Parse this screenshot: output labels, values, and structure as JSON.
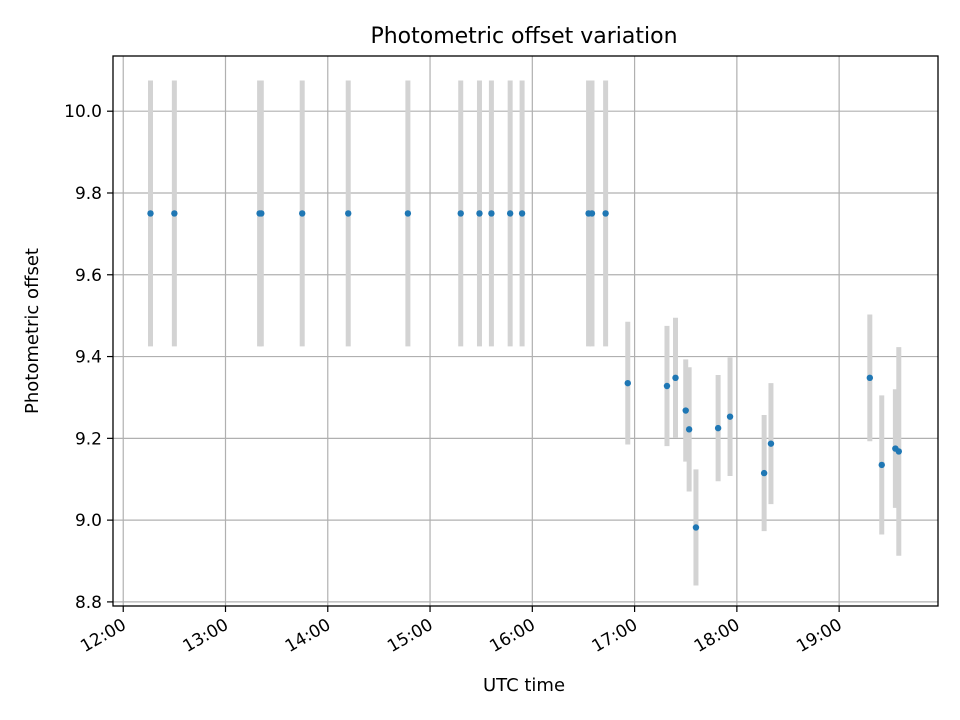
{
  "chart_data": {
    "type": "scatter",
    "title": "Photometric offset variation",
    "xlabel": "UTC time",
    "ylabel": "Photometric offset",
    "xlim": [
      "11:54",
      "19:58"
    ],
    "ylim": [
      8.79,
      10.135
    ],
    "x_ticks": [
      "12:00",
      "13:00",
      "14:00",
      "15:00",
      "16:00",
      "17:00",
      "18:00",
      "19:00"
    ],
    "y_ticks": [
      8.8,
      9.0,
      9.2,
      9.4,
      9.6,
      9.8,
      10.0
    ],
    "grid": true,
    "point_color": "#1f77b4",
    "errorbar_color": "#d3d3d3",
    "points": [
      {
        "time": "12:16",
        "y": 9.75,
        "err": 0.325
      },
      {
        "time": "12:30",
        "y": 9.75,
        "err": 0.325
      },
      {
        "time": "13:20",
        "y": 9.75,
        "err": 0.325
      },
      {
        "time": "13:21",
        "y": 9.75,
        "err": 0.325
      },
      {
        "time": "13:45",
        "y": 9.75,
        "err": 0.325
      },
      {
        "time": "14:12",
        "y": 9.75,
        "err": 0.325
      },
      {
        "time": "14:47",
        "y": 9.75,
        "err": 0.325
      },
      {
        "time": "15:18",
        "y": 9.75,
        "err": 0.325
      },
      {
        "time": "15:29",
        "y": 9.75,
        "err": 0.325
      },
      {
        "time": "15:36",
        "y": 9.75,
        "err": 0.325
      },
      {
        "time": "15:47",
        "y": 9.75,
        "err": 0.325
      },
      {
        "time": "15:54",
        "y": 9.75,
        "err": 0.325
      },
      {
        "time": "16:33",
        "y": 9.75,
        "err": 0.325
      },
      {
        "time": "16:35",
        "y": 9.75,
        "err": 0.325
      },
      {
        "time": "16:43",
        "y": 9.75,
        "err": 0.325
      },
      {
        "time": "16:56",
        "y": 9.335,
        "err": 0.15
      },
      {
        "time": "17:19",
        "y": 9.328,
        "err": 0.147
      },
      {
        "time": "17:24",
        "y": 9.348,
        "err": 0.147
      },
      {
        "time": "17:30",
        "y": 9.268,
        "err": 0.125
      },
      {
        "time": "17:32",
        "y": 9.222,
        "err": 0.152
      },
      {
        "time": "17:36",
        "y": 8.982,
        "err": 0.142
      },
      {
        "time": "17:49",
        "y": 9.225,
        "err": 0.13
      },
      {
        "time": "17:56",
        "y": 9.253,
        "err": 0.145
      },
      {
        "time": "18:16",
        "y": 9.115,
        "err": 0.142
      },
      {
        "time": "18:20",
        "y": 9.187,
        "err": 0.148
      },
      {
        "time": "19:18",
        "y": 9.348,
        "err": 0.155
      },
      {
        "time": "19:25",
        "y": 9.135,
        "err": 0.17
      },
      {
        "time": "19:33",
        "y": 9.175,
        "err": 0.145
      },
      {
        "time": "19:35",
        "y": 9.168,
        "err": 0.255
      }
    ]
  }
}
